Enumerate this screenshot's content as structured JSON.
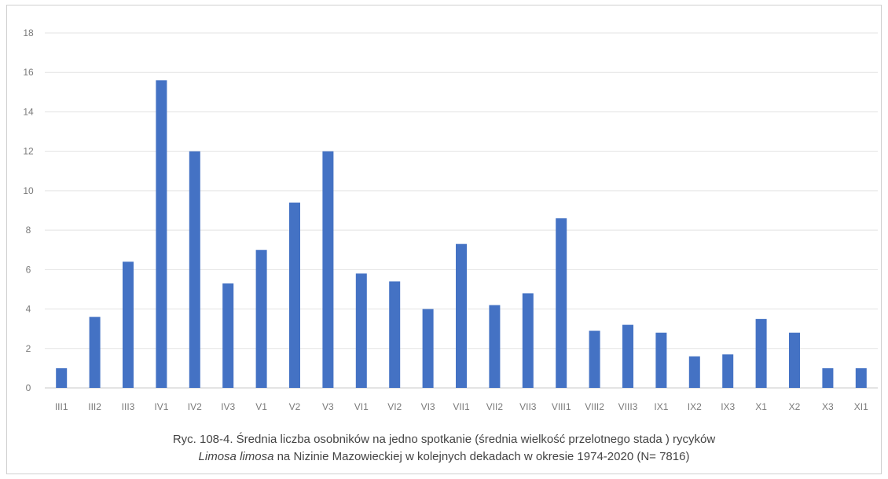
{
  "chart_data": {
    "type": "bar",
    "categories": [
      "III1",
      "III2",
      "III3",
      "IV1",
      "IV2",
      "IV3",
      "V1",
      "V2",
      "V3",
      "VI1",
      "VI2",
      "VI3",
      "VII1",
      "VII2",
      "VII3",
      "VIII1",
      "VIII2",
      "VIII3",
      "IX1",
      "IX2",
      "IX3",
      "X1",
      "X2",
      "X3",
      "XI1"
    ],
    "values": [
      1.0,
      3.6,
      6.4,
      15.6,
      12.0,
      5.3,
      7.0,
      9.4,
      12.0,
      5.8,
      5.4,
      4.0,
      7.3,
      4.2,
      4.8,
      8.6,
      2.9,
      3.2,
      2.8,
      1.6,
      1.7,
      3.5,
      2.8,
      1.0,
      1.0
    ],
    "ylim": [
      0,
      18
    ],
    "yticks": [
      0,
      2,
      4,
      6,
      8,
      10,
      12,
      14,
      16,
      18
    ],
    "grid": true,
    "bar_color": "#4472c4",
    "caption_line1": "Ryc. 108-4. Średnia liczba osobników na jedno spotkanie (średnia wielkość przelotnego stada ) rycyków",
    "caption_line2_italic": "Limosa limosa",
    "caption_line2_rest": " na Nizinie Mazowieckiej w kolejnych dekadach w okresie 1974-2020 (N= 7816)"
  }
}
